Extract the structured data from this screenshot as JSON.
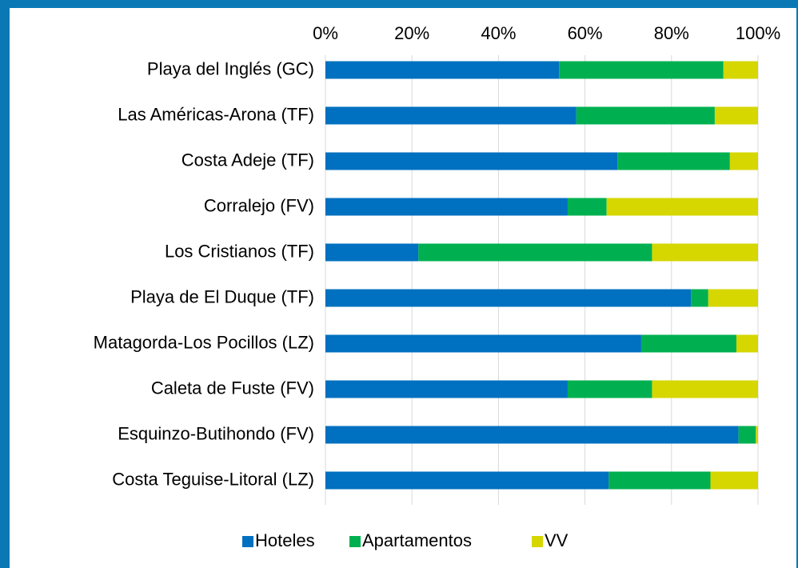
{
  "chart_data": {
    "type": "stacked_barh",
    "categories": [
      "Playa del Inglés (GC)",
      "Las Américas-Arona (TF)",
      "Costa Adeje (TF)",
      "Corralejo (FV)",
      "Los Cristianos (TF)",
      "Playa de El Duque (TF)",
      "Matagorda-Los Pocillos (LZ)",
      "Caleta de Fuste (FV)",
      "Esquinzo-Butihondo (FV)",
      "Costa Teguise-Litoral (LZ)"
    ],
    "series": [
      {
        "name": "Hoteles",
        "color": "#0070c0",
        "values": [
          54,
          58,
          67.5,
          56,
          21.5,
          84.5,
          73,
          56,
          95.5,
          65.5
        ]
      },
      {
        "name": "Apartamentos",
        "color": "#00b050",
        "values": [
          38,
          32,
          26,
          9,
          54,
          4,
          22,
          19.5,
          4,
          23.5
        ]
      },
      {
        "name": "VV",
        "color": "#d6d600",
        "values": [
          8,
          10,
          6.5,
          35,
          24.5,
          11.5,
          5,
          24.5,
          0.5,
          11
        ]
      }
    ],
    "xlim": [
      0,
      100
    ],
    "xticks": [
      {
        "value": 0,
        "label": "0%"
      },
      {
        "value": 20,
        "label": "20%"
      },
      {
        "value": 40,
        "label": "40%"
      },
      {
        "value": 60,
        "label": "60%"
      },
      {
        "value": 80,
        "label": "80%"
      },
      {
        "value": 100,
        "label": "100%"
      }
    ],
    "grid": true,
    "legend": "bottom"
  }
}
